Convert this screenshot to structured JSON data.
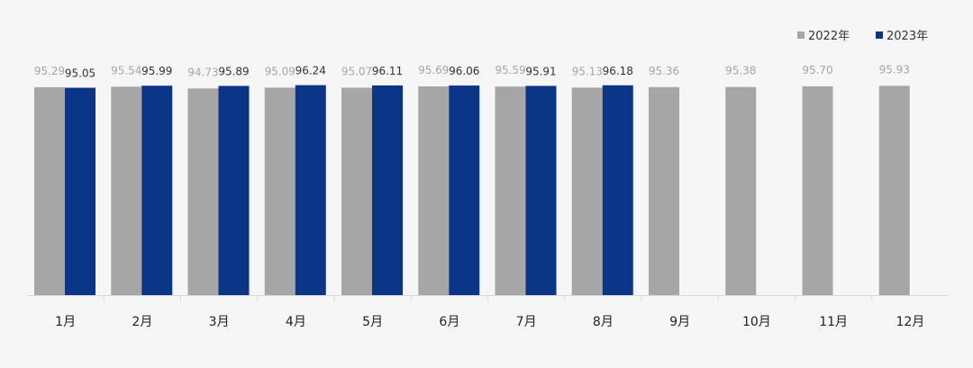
{
  "chart_data": {
    "type": "bar",
    "categories": [
      "1月",
      "2月",
      "3月",
      "4月",
      "5月",
      "6月",
      "7月",
      "8月",
      "9月",
      "10月",
      "11月",
      "12月"
    ],
    "series": [
      {
        "name": "2022年",
        "color": "#a6a6a6",
        "values": [
          95.29,
          95.54,
          94.73,
          95.09,
          95.07,
          95.69,
          95.59,
          95.13,
          95.36,
          95.38,
          95.7,
          95.93
        ],
        "labels": [
          "95.29",
          "95.54",
          "94.73",
          "95.09",
          "95.07",
          "95.69",
          "95.59",
          "95.13",
          "95.36",
          "95.38",
          "95.70",
          "95.93"
        ]
      },
      {
        "name": "2023年",
        "color": "#0b3586",
        "values": [
          95.05,
          95.99,
          95.89,
          96.24,
          96.11,
          96.06,
          95.91,
          96.18,
          null,
          null,
          null,
          null
        ],
        "labels": [
          "95.05",
          "95.99",
          "95.89",
          "96.24",
          "96.11",
          "96.06",
          "95.91",
          "96.18",
          "",
          "",
          "",
          ""
        ]
      }
    ],
    "legend_position": "top-right",
    "grid": false,
    "ylim": [
      0,
      100
    ]
  }
}
